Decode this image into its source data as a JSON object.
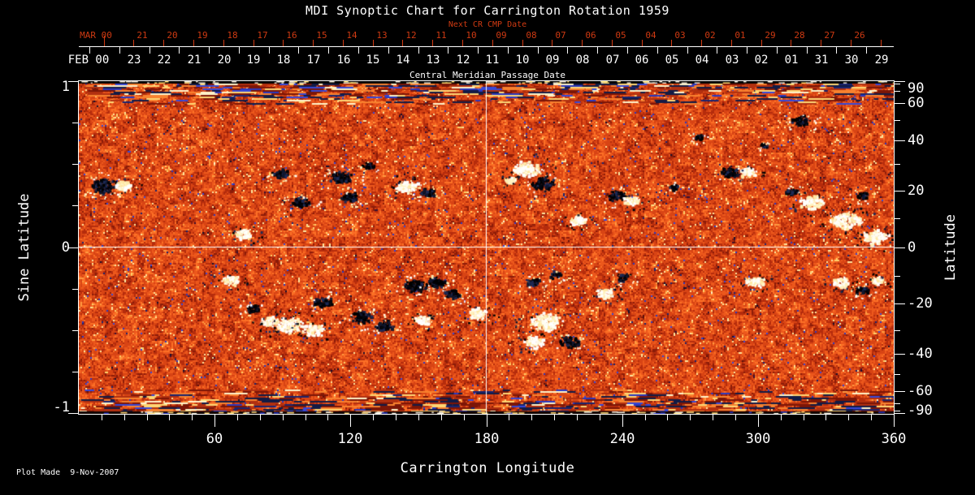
{
  "title": "MDI Synoptic Chart for Carrington Rotation 1959",
  "footer": {
    "plot_made": "Plot Made  9-Nov-2007"
  },
  "colors": {
    "background": "#000000",
    "foreground": "#ffffff",
    "accent_red": "#cf3a12",
    "map_base_orange": "#d84414",
    "positive_polarity_white": "#fffdf0",
    "negative_polarity_dark": "#05070f",
    "polar_blue_speck": "#2a38c0"
  },
  "top_axis": {
    "next_cr_title": "Next CR CMP Date",
    "cmp_title": "Central Meridian Passage Date",
    "next_month": "MAR 00",
    "month": "FEB 00",
    "next_cr_days": [
      "21",
      "20",
      "19",
      "18",
      "17",
      "16",
      "15",
      "14",
      "13",
      "12",
      "11",
      "10",
      "09",
      "08",
      "07",
      "06",
      "05",
      "04",
      "03",
      "02",
      "01",
      "29",
      "28",
      "27",
      "26"
    ],
    "cmp_days": [
      "23",
      "22",
      "21",
      "20",
      "19",
      "18",
      "17",
      "16",
      "15",
      "14",
      "13",
      "12",
      "11",
      "10",
      "09",
      "08",
      "07",
      "06",
      "05",
      "04",
      "03",
      "02",
      "01",
      "31",
      "30",
      "29"
    ]
  },
  "left_axis": {
    "title": "Sine Latitude",
    "tick_labels": [
      "1",
      "0",
      "-1"
    ],
    "tick_values": [
      1,
      0,
      -1
    ],
    "minor_step": 0.25
  },
  "right_axis": {
    "title": "Latitude",
    "tick_labels": [
      "90",
      "60",
      "40",
      "20",
      "0",
      "-20",
      "-40",
      "-60",
      "-90"
    ],
    "tick_values": [
      90,
      60,
      40,
      20,
      0,
      -20,
      -40,
      -60,
      -90
    ],
    "minor_step_deg": 10
  },
  "bottom_axis": {
    "title": "Carrington Longitude",
    "tick_labels": [
      "60",
      "120",
      "180",
      "240",
      "300",
      "360"
    ],
    "tick_values": [
      60,
      120,
      180,
      240,
      300,
      360
    ],
    "minor_step_deg": 10
  },
  "chart_data": {
    "type": "heatmap",
    "description": "MDI line-of-sight magnetic field synoptic map for Carrington rotation 1959: mottled orange-red quiet-Sun field, white/cream positive-polarity and black/navy negative-polarity active regions, horizontal streaks with blue specks near the poles, white crosshair at longitude 180 and sine latitude 0.",
    "x_axis": {
      "label": "Carrington Longitude",
      "range": [
        0,
        360
      ]
    },
    "y_axis": {
      "label": "Sine Latitude",
      "range": [
        -1,
        1
      ]
    },
    "crosshair": {
      "longitude": 180,
      "sine_latitude": 0
    },
    "palette": [
      "#140f2e",
      "#5e100a",
      "#8c1c08",
      "#b52c0c",
      "#d84414",
      "#ec581c",
      "#fc7026",
      "#ff9a40",
      "#ffd06a",
      "#fff6d2",
      "#2a38c0"
    ],
    "active_regions": [
      {
        "lon": 11,
        "slat": 0.37,
        "r": 13,
        "pol": -1
      },
      {
        "lon": 20,
        "slat": 0.37,
        "r": 9,
        "pol": 1
      },
      {
        "lon": 73,
        "slat": 0.08,
        "r": 9,
        "pol": 1
      },
      {
        "lon": 89,
        "slat": 0.44,
        "r": 8,
        "pol": -1
      },
      {
        "lon": 98,
        "slat": 0.27,
        "r": 9,
        "pol": -1
      },
      {
        "lon": 116,
        "slat": 0.42,
        "r": 11,
        "pol": -1
      },
      {
        "lon": 120,
        "slat": 0.3,
        "r": 8,
        "pol": -1
      },
      {
        "lon": 128,
        "slat": 0.49,
        "r": 6,
        "pol": -1
      },
      {
        "lon": 145,
        "slat": 0.36,
        "r": 11,
        "pol": 1
      },
      {
        "lon": 154,
        "slat": 0.33,
        "r": 8,
        "pol": -1
      },
      {
        "lon": 191,
        "slat": 0.4,
        "r": 6,
        "pol": 1
      },
      {
        "lon": 198,
        "slat": 0.47,
        "r": 13,
        "pol": 1
      },
      {
        "lon": 205,
        "slat": 0.38,
        "r": 11,
        "pol": -1
      },
      {
        "lon": 221,
        "slat": 0.16,
        "r": 8,
        "pol": 1
      },
      {
        "lon": 238,
        "slat": 0.31,
        "r": 9,
        "pol": -1
      },
      {
        "lon": 244,
        "slat": 0.28,
        "r": 8,
        "pol": 1
      },
      {
        "lon": 263,
        "slat": 0.36,
        "r": 5,
        "pol": -1
      },
      {
        "lon": 274,
        "slat": 0.66,
        "r": 5,
        "pol": -1
      },
      {
        "lon": 288,
        "slat": 0.45,
        "r": 9,
        "pol": -1
      },
      {
        "lon": 296,
        "slat": 0.45,
        "r": 8,
        "pol": 1
      },
      {
        "lon": 303,
        "slat": 0.61,
        "r": 4,
        "pol": -1
      },
      {
        "lon": 315,
        "slat": 0.33,
        "r": 6,
        "pol": -1
      },
      {
        "lon": 319,
        "slat": 0.76,
        "r": 9,
        "pol": -1
      },
      {
        "lon": 324,
        "slat": 0.27,
        "r": 12,
        "pol": 1
      },
      {
        "lon": 339,
        "slat": 0.16,
        "r": 15,
        "pol": 1
      },
      {
        "lon": 346,
        "slat": 0.31,
        "r": 6,
        "pol": -1
      },
      {
        "lon": 352,
        "slat": 0.06,
        "r": 12,
        "pol": 1
      },
      {
        "lon": 67,
        "slat": -0.2,
        "r": 9,
        "pol": 1
      },
      {
        "lon": 77,
        "slat": -0.37,
        "r": 7,
        "pol": -1
      },
      {
        "lon": 85,
        "slat": -0.45,
        "r": 9,
        "pol": 1
      },
      {
        "lon": 93,
        "slat": -0.47,
        "r": 13,
        "pol": 1
      },
      {
        "lon": 104,
        "slat": -0.5,
        "r": 11,
        "pol": 1
      },
      {
        "lon": 108,
        "slat": -0.33,
        "r": 9,
        "pol": -1
      },
      {
        "lon": 125,
        "slat": -0.42,
        "r": 11,
        "pol": -1
      },
      {
        "lon": 135,
        "slat": -0.47,
        "r": 9,
        "pol": -1
      },
      {
        "lon": 149,
        "slat": -0.23,
        "r": 11,
        "pol": -1
      },
      {
        "lon": 158,
        "slat": -0.21,
        "r": 9,
        "pol": -1
      },
      {
        "lon": 165,
        "slat": -0.28,
        "r": 8,
        "pol": -1
      },
      {
        "lon": 152,
        "slat": -0.44,
        "r": 8,
        "pol": 1
      },
      {
        "lon": 176,
        "slat": -0.4,
        "r": 10,
        "pol": 1
      },
      {
        "lon": 201,
        "slat": -0.21,
        "r": 7,
        "pol": -1
      },
      {
        "lon": 211,
        "slat": -0.17,
        "r": 6,
        "pol": -1
      },
      {
        "lon": 206,
        "slat": -0.45,
        "r": 15,
        "pol": 1
      },
      {
        "lon": 201,
        "slat": -0.57,
        "r": 10,
        "pol": 1
      },
      {
        "lon": 217,
        "slat": -0.57,
        "r": 9,
        "pol": -1
      },
      {
        "lon": 233,
        "slat": -0.28,
        "r": 9,
        "pol": 1
      },
      {
        "lon": 241,
        "slat": -0.18,
        "r": 7,
        "pol": -1
      },
      {
        "lon": 299,
        "slat": -0.21,
        "r": 9,
        "pol": 1
      },
      {
        "lon": 337,
        "slat": -0.21,
        "r": 9,
        "pol": 1
      },
      {
        "lon": 346,
        "slat": -0.26,
        "r": 7,
        "pol": -1
      },
      {
        "lon": 353,
        "slat": -0.2,
        "r": 7,
        "pol": 1
      }
    ]
  }
}
